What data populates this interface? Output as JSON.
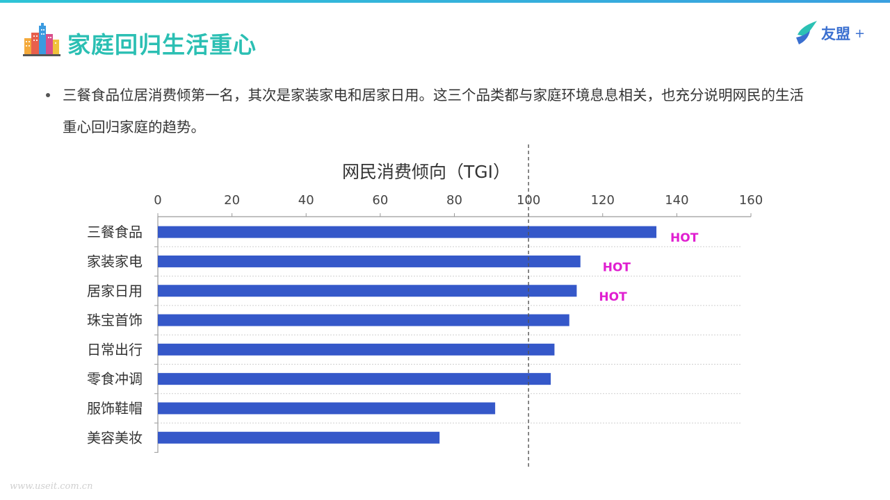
{
  "header": {
    "title": "家庭回归生活重心",
    "brand_name": "友盟",
    "brand_suffix": "+"
  },
  "bullet": {
    "text": "三餐食品位居消费倾第一名，其次是家装家电和居家日用。这三个品类都与家庭环境息息相关，也充分说明网民的生活重心回归家庭的趋势。"
  },
  "watermark": "www.useit.com.cn",
  "chart_data": {
    "type": "bar",
    "orientation": "horizontal",
    "title": "网民消费倾向（TGI）",
    "categories": [
      "三餐食品",
      "家装家电",
      "居家日用",
      "珠宝首饰",
      "日常出行",
      "零食冲调",
      "服饰鞋帽",
      "美容美妆"
    ],
    "values": [
      134.5,
      114,
      113,
      111,
      107,
      106,
      91,
      76
    ],
    "xlim": [
      0,
      160
    ],
    "xticks": [
      0,
      20,
      40,
      60,
      80,
      100,
      120,
      140,
      160
    ],
    "x_axis_position": "top",
    "reference_line": 100,
    "annotations": [
      {
        "category": "三餐食品",
        "text": "HOT"
      },
      {
        "category": "家装家电",
        "text": "HOT"
      },
      {
        "category": "居家日用",
        "text": "HOT"
      }
    ],
    "bar_color": "#3558c9",
    "annotation_color": "#e01fd0",
    "grid": "horizontal dotted separators"
  }
}
